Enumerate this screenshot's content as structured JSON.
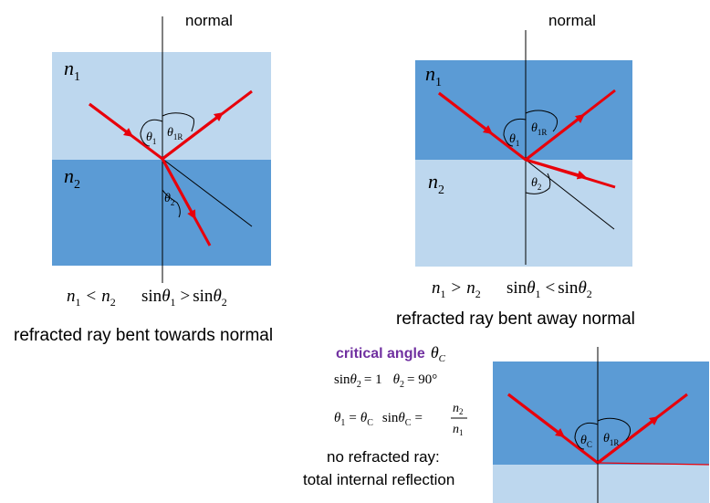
{
  "colors": {
    "light_medium": "#bdd7ee",
    "dark_medium": "#5b9bd5",
    "ray": "#e8000b",
    "line": "#000000",
    "critical_heading": "#7030a0"
  },
  "panel1": {
    "normal_label": "normal",
    "medium_top": {
      "n": "n",
      "sub": "1"
    },
    "medium_bottom": {
      "n": "n",
      "sub": "2"
    },
    "angle_incident": {
      "sym": "θ",
      "sub": "1"
    },
    "angle_reflected": {
      "sym": "θ",
      "sub": "1R"
    },
    "angle_refracted": {
      "sym": "θ",
      "sub": "2"
    },
    "relation_left": {
      "n1": "n",
      "s1": "1",
      "op": "<",
      "n2": "n",
      "s2": "2"
    },
    "relation_right": {
      "f1": "sin",
      "t1": "θ",
      "s1": "1",
      "op": ">",
      "f2": "sin",
      "t2": "θ",
      "s2": "2"
    },
    "caption": "refracted ray bent towards normal"
  },
  "panel2": {
    "normal_label": "normal",
    "medium_top": {
      "n": "n",
      "sub": "1"
    },
    "medium_bottom": {
      "n": "n",
      "sub": "2"
    },
    "angle_incident": {
      "sym": "θ",
      "sub": "1"
    },
    "angle_reflected": {
      "sym": "θ",
      "sub": "1R"
    },
    "angle_refracted": {
      "sym": "θ",
      "sub": "2"
    },
    "relation_left": {
      "n1": "n",
      "s1": "1",
      "op": ">",
      "n2": "n",
      "s2": "2"
    },
    "relation_right": {
      "f1": "sin",
      "t1": "θ",
      "s1": "1",
      "op": "<",
      "f2": "sin",
      "t2": "θ",
      "s2": "2"
    },
    "caption": "refracted ray bent away normal"
  },
  "panel3": {
    "heading": "critical angle",
    "heading_sym": {
      "sym": "θ",
      "sub": "C"
    },
    "eq1": {
      "f": "sin",
      "t": "θ",
      "s": "2",
      "rhs": "= 1",
      "t2": "θ",
      "s2": "2",
      "rhs2": "= 90°"
    },
    "eq2": {
      "t": "θ",
      "s": "1",
      "eq": "=",
      "tc": "θ",
      "sc": "C",
      "f": "sin",
      "tc2": "θ",
      "sc2": "C",
      "eq2": "=",
      "num": "n",
      "num_sub": "2",
      "den": "n",
      "den_sub": "1"
    },
    "note_line1": "no refracted ray:",
    "note_line2": "total internal reflection",
    "angle_incident": {
      "sym": "θ",
      "sub": "C"
    },
    "angle_reflected": {
      "sym": "θ",
      "sub": "1R"
    }
  }
}
